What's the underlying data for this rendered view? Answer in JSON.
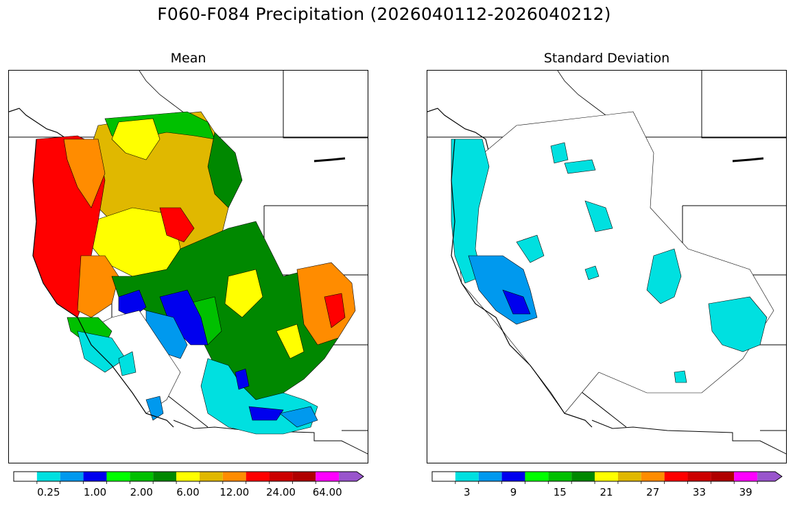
{
  "figure": {
    "title": "F060-F084 Precipitation (2026040112-2026040212)"
  },
  "panels": [
    {
      "title": "Mean"
    },
    {
      "title": "Standard Deviation"
    }
  ],
  "colorbar": {
    "colors": [
      "#ffffff",
      "#00e0e0",
      "#0099ee",
      "#0000ee",
      "#00ff00",
      "#00c000",
      "#008800",
      "#ffff00",
      "#e0b800",
      "#ff8c00",
      "#ff0000",
      "#cc0000",
      "#b00000",
      "#ff00ff",
      "#9955cc"
    ],
    "extend": "max"
  },
  "colorbar_mean": {
    "tick_labels": [
      "0.25",
      "1.00",
      "2.00",
      "6.00",
      "12.00",
      "24.00",
      "64.00"
    ],
    "tick_bins": [
      1,
      3,
      5,
      7,
      9,
      11,
      13
    ]
  },
  "colorbar_std": {
    "tick_labels": [
      "3",
      "9",
      "15",
      "21",
      "27",
      "33",
      "39"
    ],
    "tick_bins": [
      1,
      3,
      5,
      7,
      9,
      11,
      13
    ]
  }
}
